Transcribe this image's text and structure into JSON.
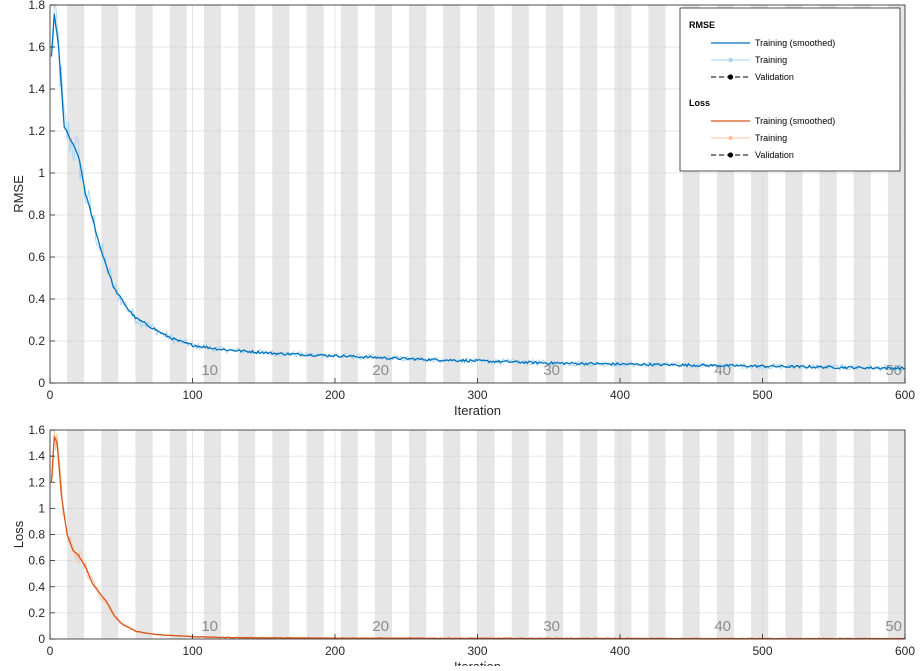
{
  "chart_data": [
    {
      "type": "line",
      "ylabel": "RMSE",
      "xlabel": "Iteration",
      "xlim": [
        0,
        600
      ],
      "ylim": [
        0,
        1.8
      ],
      "xticks": [
        "0",
        "100",
        "200",
        "300",
        "400",
        "500",
        "600"
      ],
      "yticks": [
        "0",
        "0.2",
        "0.4",
        "0.6",
        "0.8",
        "1",
        "1.2",
        "1.4",
        "1.6",
        "1.8"
      ],
      "epoch_labels": [
        "10",
        "20",
        "30",
        "40",
        "50"
      ],
      "epochs": 50,
      "iterations_per_epoch": 12,
      "grid": true,
      "legend_placement": "top-right",
      "series": [
        {
          "name": "Training (smoothed)",
          "color": "#0072BD",
          "x": [
            1,
            3,
            6,
            10,
            15,
            20,
            25,
            30,
            35,
            40,
            45,
            50,
            55,
            60,
            70,
            80,
            90,
            100,
            120,
            140,
            160,
            180,
            200,
            250,
            300,
            350,
            400,
            450,
            500,
            550,
            600
          ],
          "y": [
            1.55,
            1.76,
            1.6,
            1.22,
            1.15,
            1.08,
            0.9,
            0.78,
            0.65,
            0.55,
            0.45,
            0.4,
            0.35,
            0.31,
            0.27,
            0.23,
            0.2,
            0.18,
            0.16,
            0.15,
            0.14,
            0.135,
            0.13,
            0.115,
            0.105,
            0.095,
            0.09,
            0.085,
            0.08,
            0.075,
            0.07
          ]
        },
        {
          "name": "Training",
          "color": "#A6D4F2",
          "x": [
            1,
            3,
            6,
            10,
            15,
            20,
            25,
            30,
            35,
            40,
            45,
            50,
            55,
            60,
            70,
            80,
            90,
            100,
            120,
            140,
            160,
            180,
            200,
            250,
            300,
            350,
            400,
            450,
            500,
            550,
            600
          ],
          "y": [
            1.55,
            1.76,
            1.6,
            1.22,
            1.15,
            1.08,
            0.9,
            0.78,
            0.65,
            0.55,
            0.45,
            0.4,
            0.35,
            0.31,
            0.27,
            0.23,
            0.2,
            0.18,
            0.16,
            0.15,
            0.14,
            0.135,
            0.13,
            0.115,
            0.105,
            0.095,
            0.09,
            0.085,
            0.08,
            0.075,
            0.07
          ]
        },
        {
          "name": "Validation",
          "color": "#000000",
          "x": [],
          "y": []
        }
      ],
      "legend": {
        "rmse_title": "RMSE",
        "loss_title": "Loss",
        "entries": [
          "Training (smoothed)",
          "Training",
          "Validation"
        ]
      }
    },
    {
      "type": "line",
      "ylabel": "Loss",
      "xlabel": "Iteration",
      "xlim": [
        0,
        600
      ],
      "ylim": [
        0,
        1.6
      ],
      "xticks": [
        "0",
        "100",
        "200",
        "300",
        "400",
        "500",
        "600"
      ],
      "yticks": [
        "0",
        "0.2",
        "0.4",
        "0.6",
        "0.8",
        "1",
        "1.2",
        "1.4",
        "1.6"
      ],
      "epoch_labels": [
        "10",
        "20",
        "30",
        "40",
        "50"
      ],
      "epochs": 50,
      "iterations_per_epoch": 12,
      "grid": true,
      "series": [
        {
          "name": "Training (smoothed)",
          "color": "#D95319",
          "x": [
            1,
            3,
            5,
            8,
            12,
            16,
            20,
            25,
            30,
            35,
            40,
            45,
            50,
            55,
            60,
            70,
            80,
            90,
            100,
            120,
            150,
            200,
            300,
            400,
            500,
            600
          ],
          "y": [
            1.2,
            1.55,
            1.5,
            1.1,
            0.8,
            0.68,
            0.64,
            0.55,
            0.42,
            0.35,
            0.28,
            0.18,
            0.12,
            0.09,
            0.06,
            0.04,
            0.03,
            0.025,
            0.018,
            0.012,
            0.009,
            0.007,
            0.005,
            0.004,
            0.003,
            0.003
          ]
        },
        {
          "name": "Training",
          "color": "#F6C59E",
          "x": [
            1,
            3,
            5,
            8,
            12,
            16,
            20,
            25,
            30,
            35,
            40,
            45,
            50,
            55,
            60,
            70,
            80,
            90,
            100,
            120,
            150,
            200,
            300,
            400,
            500,
            600
          ],
          "y": [
            1.2,
            1.55,
            1.5,
            1.1,
            0.8,
            0.68,
            0.64,
            0.55,
            0.42,
            0.35,
            0.28,
            0.18,
            0.12,
            0.09,
            0.06,
            0.04,
            0.03,
            0.025,
            0.018,
            0.012,
            0.009,
            0.007,
            0.005,
            0.004,
            0.003,
            0.003
          ]
        },
        {
          "name": "Validation",
          "color": "#000000",
          "x": [],
          "y": []
        }
      ]
    }
  ]
}
